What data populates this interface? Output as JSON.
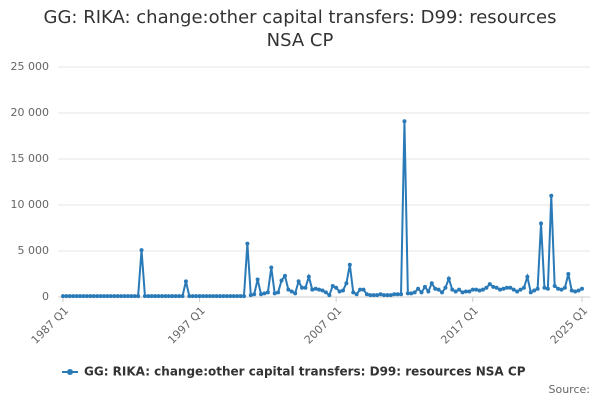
{
  "chart_data": {
    "type": "line",
    "title": "GG: RIKA: change:other capital transfers: D99: resources NSA CP",
    "categories": [
      "1987 Q1",
      null,
      null,
      null,
      null,
      null,
      null,
      null,
      null,
      null,
      null,
      null,
      null,
      null,
      null,
      null,
      null,
      null,
      null,
      null,
      null,
      null,
      null,
      null,
      null,
      null,
      null,
      null,
      null,
      null,
      null,
      null,
      null,
      null,
      null,
      null,
      null,
      null,
      null,
      null,
      "1997 Q1",
      null,
      null,
      null,
      null,
      null,
      null,
      null,
      null,
      null,
      null,
      null,
      null,
      null,
      null,
      null,
      null,
      null,
      null,
      null,
      null,
      null,
      null,
      null,
      null,
      null,
      null,
      null,
      null,
      null,
      null,
      null,
      null,
      null,
      null,
      null,
      null,
      null,
      null,
      null,
      "2007 Q1",
      null,
      null,
      null,
      null,
      null,
      null,
      null,
      null,
      null,
      null,
      null,
      null,
      null,
      null,
      null,
      null,
      null,
      null,
      null,
      null,
      null,
      null,
      null,
      null,
      null,
      null,
      null,
      null,
      null,
      null,
      null,
      null,
      null,
      null,
      null,
      null,
      null,
      null,
      null,
      "2017 Q1",
      null,
      null,
      null,
      null,
      null,
      null,
      null,
      null,
      null,
      null,
      null,
      null,
      null,
      null,
      null,
      null,
      null,
      null,
      null,
      null,
      null,
      null,
      null,
      null,
      null,
      null,
      null,
      null,
      null,
      null,
      null,
      "2025 Q1"
    ],
    "series": [
      {
        "name": "GG: RIKA: change:other capital transfers: D99: resources NSA CP",
        "color": "#2a7ab8",
        "values": [
          100,
          100,
          100,
          100,
          100,
          100,
          100,
          100,
          100,
          100,
          100,
          100,
          100,
          100,
          100,
          100,
          100,
          100,
          100,
          100,
          100,
          100,
          100,
          5100,
          100,
          100,
          100,
          100,
          100,
          100,
          100,
          100,
          100,
          100,
          100,
          100,
          1700,
          100,
          100,
          100,
          100,
          100,
          100,
          100,
          100,
          100,
          100,
          100,
          100,
          100,
          100,
          100,
          100,
          100,
          5800,
          200,
          300,
          1900,
          300,
          400,
          500,
          3200,
          400,
          500,
          1800,
          2300,
          800,
          600,
          400,
          1700,
          1000,
          1000,
          2200,
          800,
          900,
          800,
          700,
          500,
          200,
          1200,
          1000,
          600,
          700,
          1500,
          3500,
          500,
          300,
          800,
          800,
          300,
          200,
          200,
          200,
          300,
          200,
          200,
          200,
          300,
          300,
          300,
          19100,
          400,
          400,
          500,
          900,
          500,
          1100,
          600,
          1500,
          900,
          800,
          500,
          1000,
          2000,
          800,
          600,
          800,
          500,
          600,
          600,
          800,
          800,
          700,
          800,
          1000,
          1400,
          1100,
          1000,
          800,
          900,
          1000,
          1000,
          800,
          600,
          800,
          1000,
          2200,
          500,
          700,
          900,
          8000,
          1000,
          900,
          11000,
          1200,
          900,
          800,
          1000,
          2500,
          700,
          600,
          700,
          900
        ]
      }
    ],
    "ylim": [
      0,
      25000
    ],
    "yticks": [
      0,
      {
        "value": 5000,
        "label": "5 000"
      },
      {
        "value": 10000,
        "label": "10 000"
      },
      {
        "value": 15000,
        "label": "15 000"
      },
      {
        "value": 20000,
        "label": "20 000"
      },
      {
        "value": 25000,
        "label": "25 000"
      }
    ],
    "grid": true,
    "source": "Source:"
  }
}
